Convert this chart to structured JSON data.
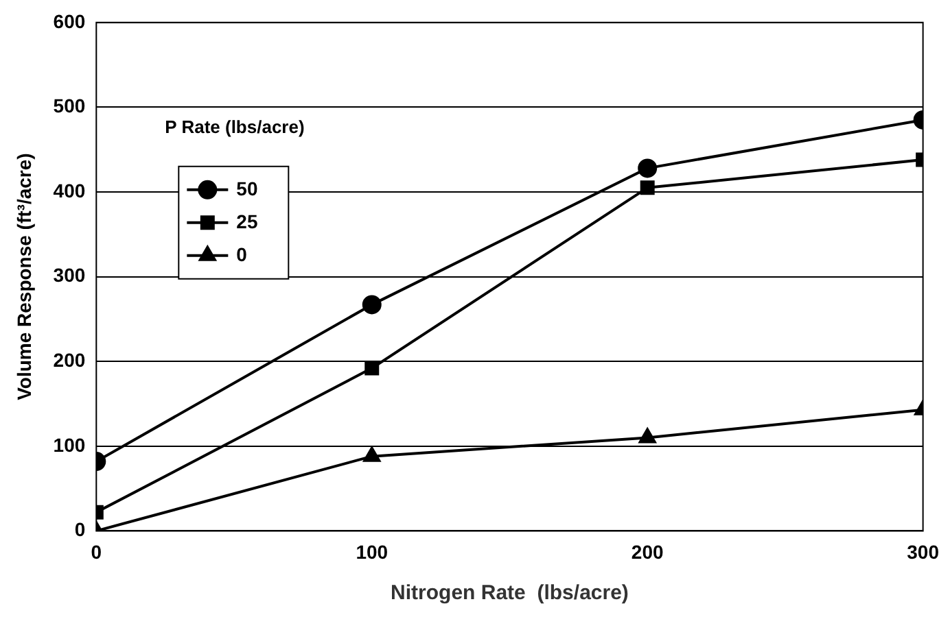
{
  "chart_data": {
    "type": "line",
    "xlabel": "Nitrogen Rate  (lbs/acre)",
    "ylabel": "Volume Response (ft³/acre)",
    "legend_title": "P Rate (lbs/acre)",
    "x": [
      0,
      100,
      200,
      300
    ],
    "series": [
      {
        "name": "50",
        "color": "#000000",
        "marker": "circle",
        "values": [
          82,
          267,
          428,
          485
        ]
      },
      {
        "name": "25",
        "color": "#000000",
        "marker": "square",
        "values": [
          22,
          192,
          405,
          438
        ]
      },
      {
        "name": "0",
        "color": "#000000",
        "marker": "triangle",
        "values": [
          0,
          88,
          110,
          143
        ]
      }
    ],
    "xlim": [
      0,
      300
    ],
    "xticks": [
      0,
      100,
      200,
      300
    ],
    "ylim": [
      0,
      600
    ],
    "yticks": [
      0,
      100,
      200,
      300,
      400,
      500,
      600
    ],
    "grid": "y",
    "legend": "top left",
    "line_style": "solid"
  }
}
